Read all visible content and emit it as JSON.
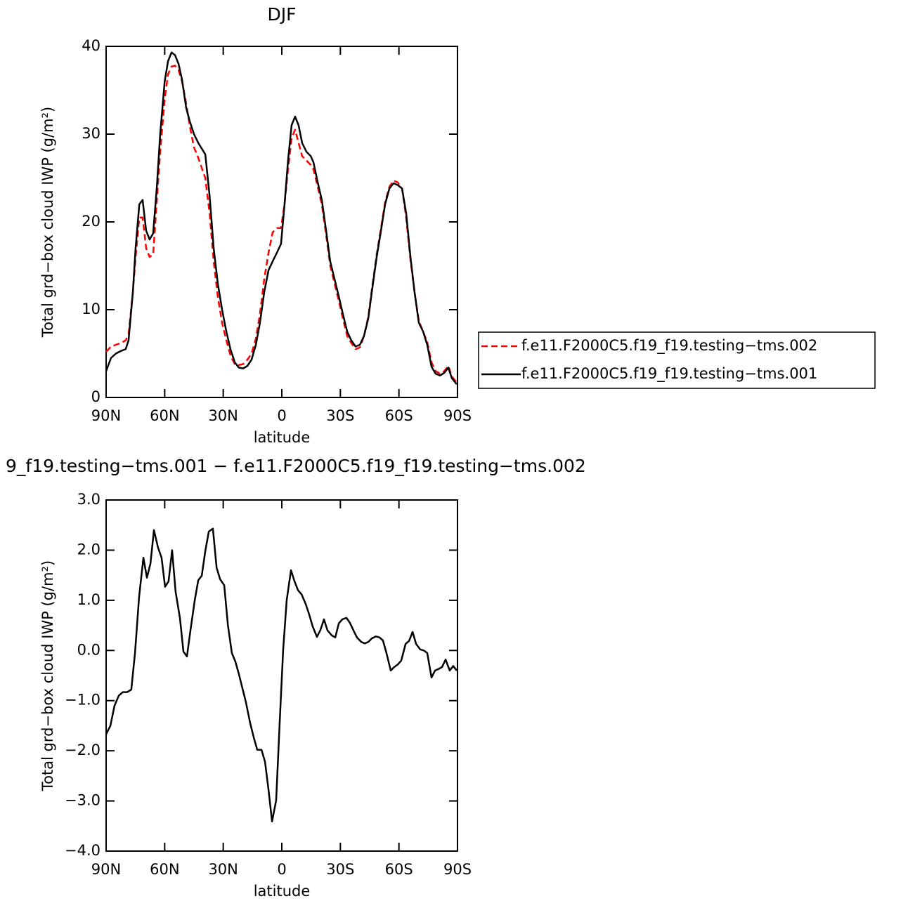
{
  "chart_data": [
    {
      "type": "line",
      "title": "DJF",
      "xlabel": "latitude",
      "ylabel": "Total grd−box cloud IWP (g/m²)",
      "xlim": [
        90,
        -90
      ],
      "ylim": [
        0,
        40
      ],
      "xticks": [
        {
          "value": 90,
          "label": "90N"
        },
        {
          "value": 60,
          "label": "60N"
        },
        {
          "value": 30,
          "label": "30N"
        },
        0,
        {
          "value": -30,
          "label": "30S"
        },
        {
          "value": -60,
          "label": "60S"
        },
        {
          "value": -90,
          "label": "90S"
        }
      ],
      "yticks": [
        0,
        10,
        20,
        30,
        40
      ],
      "legend": "outside-right",
      "x": [
        90,
        87.5,
        85,
        82.4,
        80,
        78.5,
        76.3,
        74.9,
        73,
        71.3,
        69.5,
        67.7,
        65.9,
        64,
        62.3,
        60,
        58.3,
        56.5,
        54.7,
        52.9,
        51.1,
        49,
        47.2,
        45,
        42.8,
        39.2,
        37,
        34.9,
        32.8,
        30.6,
        28.4,
        26.3,
        24.1,
        22,
        19.8,
        17.6,
        15.5,
        13.3,
        11.2,
        9,
        6.8,
        4.7,
        2.5,
        0.4,
        -1.4,
        -3.2,
        -5,
        -6.8,
        -8.6,
        -10.4,
        -12.6,
        -14.8,
        -16.2,
        -18.4,
        -20.5,
        -22.7,
        -24.8,
        -27,
        -29.2,
        -31.3,
        -33.5,
        -35.6,
        -37.8,
        -40,
        -42.1,
        -44.3,
        -46.4,
        -48.6,
        -50.8,
        -52.9,
        -55.1,
        -57.2,
        -59.4,
        -61.6,
        -63.7,
        -65.9,
        -68,
        -70.2,
        -72.4,
        -74.5,
        -76.7,
        -78.8,
        -81,
        -83.2,
        -85.3,
        -87.1,
        -89.6
      ],
      "series": [
        {
          "name": "f.e11.F2000C5.f19_f19.testing−tms.002",
          "color": "#ff0000",
          "dash": true,
          "values": [
            5.2,
            5.8,
            6.0,
            6.2,
            6.5,
            7.2,
            12,
            16,
            20.5,
            20.5,
            17,
            16,
            16.3,
            22.5,
            28,
            34,
            36.8,
            37.7,
            37.8,
            37.3,
            36,
            33.5,
            31,
            28.5,
            27.3,
            25,
            21,
            15.5,
            11.5,
            8.5,
            6.5,
            4.8,
            3.8,
            3.7,
            3.8,
            4.3,
            5,
            6.7,
            9.5,
            13.5,
            16.5,
            18.8,
            19.3,
            19.3,
            22,
            26,
            29.5,
            30.5,
            29,
            27.5,
            27,
            26.5,
            26,
            24,
            22,
            18.5,
            15,
            13,
            11,
            9,
            7,
            6.2,
            5.5,
            5.7,
            7,
            9.2,
            12.8,
            16.3,
            19.3,
            22.2,
            24,
            24.7,
            24.5,
            23.8,
            20.5,
            15.7,
            12,
            8.7,
            7.5,
            6.3,
            4,
            3,
            2.7,
            3,
            3.6,
            2.4,
            1.7
          ]
        },
        {
          "name": "f.e11.F2000C5.f19_f19.testing−tms.001",
          "color": "#000000",
          "dash": false,
          "values": [
            3,
            4.5,
            5.0,
            5.3,
            5.5,
            6.5,
            12,
            17,
            22,
            22.5,
            19,
            18,
            18.7,
            24,
            30,
            36,
            38.3,
            39.3,
            39,
            38,
            36.2,
            33,
            31.5,
            30,
            29,
            27.7,
            23,
            17,
            13,
            10,
            7.5,
            5.5,
            4,
            3.4,
            3.3,
            3.6,
            4.3,
            6,
            8.5,
            12,
            14.5,
            15.5,
            16.5,
            17.5,
            22,
            27,
            31,
            32,
            31,
            29,
            28,
            27.5,
            26.8,
            24.5,
            22.5,
            19,
            15.5,
            13.5,
            11.5,
            9.5,
            7.5,
            6.5,
            5.8,
            6,
            7,
            9,
            12.5,
            16,
            19,
            22,
            23.8,
            24.4,
            24.2,
            23.8,
            21,
            16,
            12,
            8.5,
            7.5,
            6,
            3.5,
            2.7,
            2.5,
            2.8,
            3.4,
            2.2,
            1.5
          ]
        }
      ]
    },
    {
      "type": "line",
      "title": "9_f19.testing−tms.001 − f.e11.F2000C5.f19_f19.testing−tms.002",
      "xlabel": "latitude",
      "ylabel": "Total grd−box cloud IWP (g/m²)",
      "xlim": [
        90,
        -90
      ],
      "ylim": [
        -4,
        3
      ],
      "xticks": [
        {
          "value": 90,
          "label": "90N"
        },
        {
          "value": 60,
          "label": "60N"
        },
        {
          "value": 30,
          "label": "30N"
        },
        0,
        {
          "value": -30,
          "label": "30S"
        },
        {
          "value": -60,
          "label": "60S"
        },
        {
          "value": -90,
          "label": "90S"
        }
      ],
      "yticks": [
        {
          "value": -4,
          "label": "−4.0"
        },
        {
          "value": -3,
          "label": "−3.0"
        },
        {
          "value": -2,
          "label": "−2.0"
        },
        {
          "value": -1,
          "label": "−1.0"
        },
        {
          "value": 0,
          "label": "0.0"
        },
        {
          "value": 1,
          "label": "1.0"
        },
        {
          "value": 2,
          "label": "2.0"
        },
        {
          "value": 3,
          "label": "3.0"
        }
      ],
      "x": [
        90,
        87.8,
        85.7,
        83.5,
        81.4,
        79.2,
        77.1,
        75.2,
        73.1,
        70.9,
        69.1,
        67.3,
        65.5,
        63.4,
        61.6,
        59.8,
        58,
        56.2,
        54.4,
        52.2,
        50.4,
        48.6,
        46.8,
        44.6,
        42.8,
        41,
        39.2,
        37.4,
        35.3,
        33.4,
        31.6,
        29.5,
        27.6,
        25.6,
        23.8,
        22,
        20.2,
        18.4,
        16.2,
        14.4,
        12.6,
        10.4,
        8.6,
        6.8,
        5,
        2.9,
        1.1,
        -0.7,
        -2.5,
        -4.7,
        -6.5,
        -8.3,
        -10.1,
        -12.2,
        -14,
        -15.8,
        -18,
        -19.8,
        -21.6,
        -23.4,
        -25.6,
        -27.4,
        -29.2,
        -31,
        -33.1,
        -34.9,
        -36.7,
        -38.5,
        -40.7,
        -42.5,
        -44.3,
        -46.1,
        -48.2,
        -50,
        -51.8,
        -53.6,
        -55.8,
        -57.6,
        -59.4,
        -61.2,
        -63.4,
        -65.2,
        -67,
        -68.8,
        -70.9,
        -72.7,
        -74.5,
        -76.7,
        -78.5,
        -80.3,
        -82.1,
        -83.9,
        -86,
        -87.8,
        -89.6
      ],
      "series": [
        {
          "color": "#000000",
          "dash": false,
          "values": [
            -1.67,
            -1.5,
            -1.1,
            -0.9,
            -0.83,
            -0.83,
            -0.78,
            -0.05,
            1.07,
            1.85,
            1.45,
            1.73,
            2.4,
            2.05,
            1.85,
            1.27,
            1.38,
            2.0,
            1.17,
            0.65,
            -0.02,
            -0.12,
            0.4,
            1.0,
            1.4,
            1.49,
            1.98,
            2.37,
            2.43,
            1.65,
            1.42,
            1.3,
            0.5,
            -0.05,
            -0.22,
            -0.47,
            -0.75,
            -1.03,
            -1.45,
            -1.73,
            -1.98,
            -1.98,
            -2.22,
            -2.78,
            -3.41,
            -2.99,
            -1.45,
            0.02,
            1.0,
            1.6,
            1.38,
            1.2,
            1.12,
            0.93,
            0.72,
            0.48,
            0.27,
            0.41,
            0.62,
            0.4,
            0.3,
            0.26,
            0.54,
            0.62,
            0.65,
            0.55,
            0.4,
            0.26,
            0.17,
            0.14,
            0.17,
            0.24,
            0.28,
            0.26,
            0.2,
            -0.05,
            -0.4,
            -0.33,
            -0.28,
            -0.2,
            0.13,
            0.19,
            0.37,
            0.13,
            0.02,
            0.0,
            -0.05,
            -0.54,
            -0.4,
            -0.37,
            -0.33,
            -0.18,
            -0.4,
            -0.31,
            -0.4
          ]
        }
      ]
    }
  ]
}
